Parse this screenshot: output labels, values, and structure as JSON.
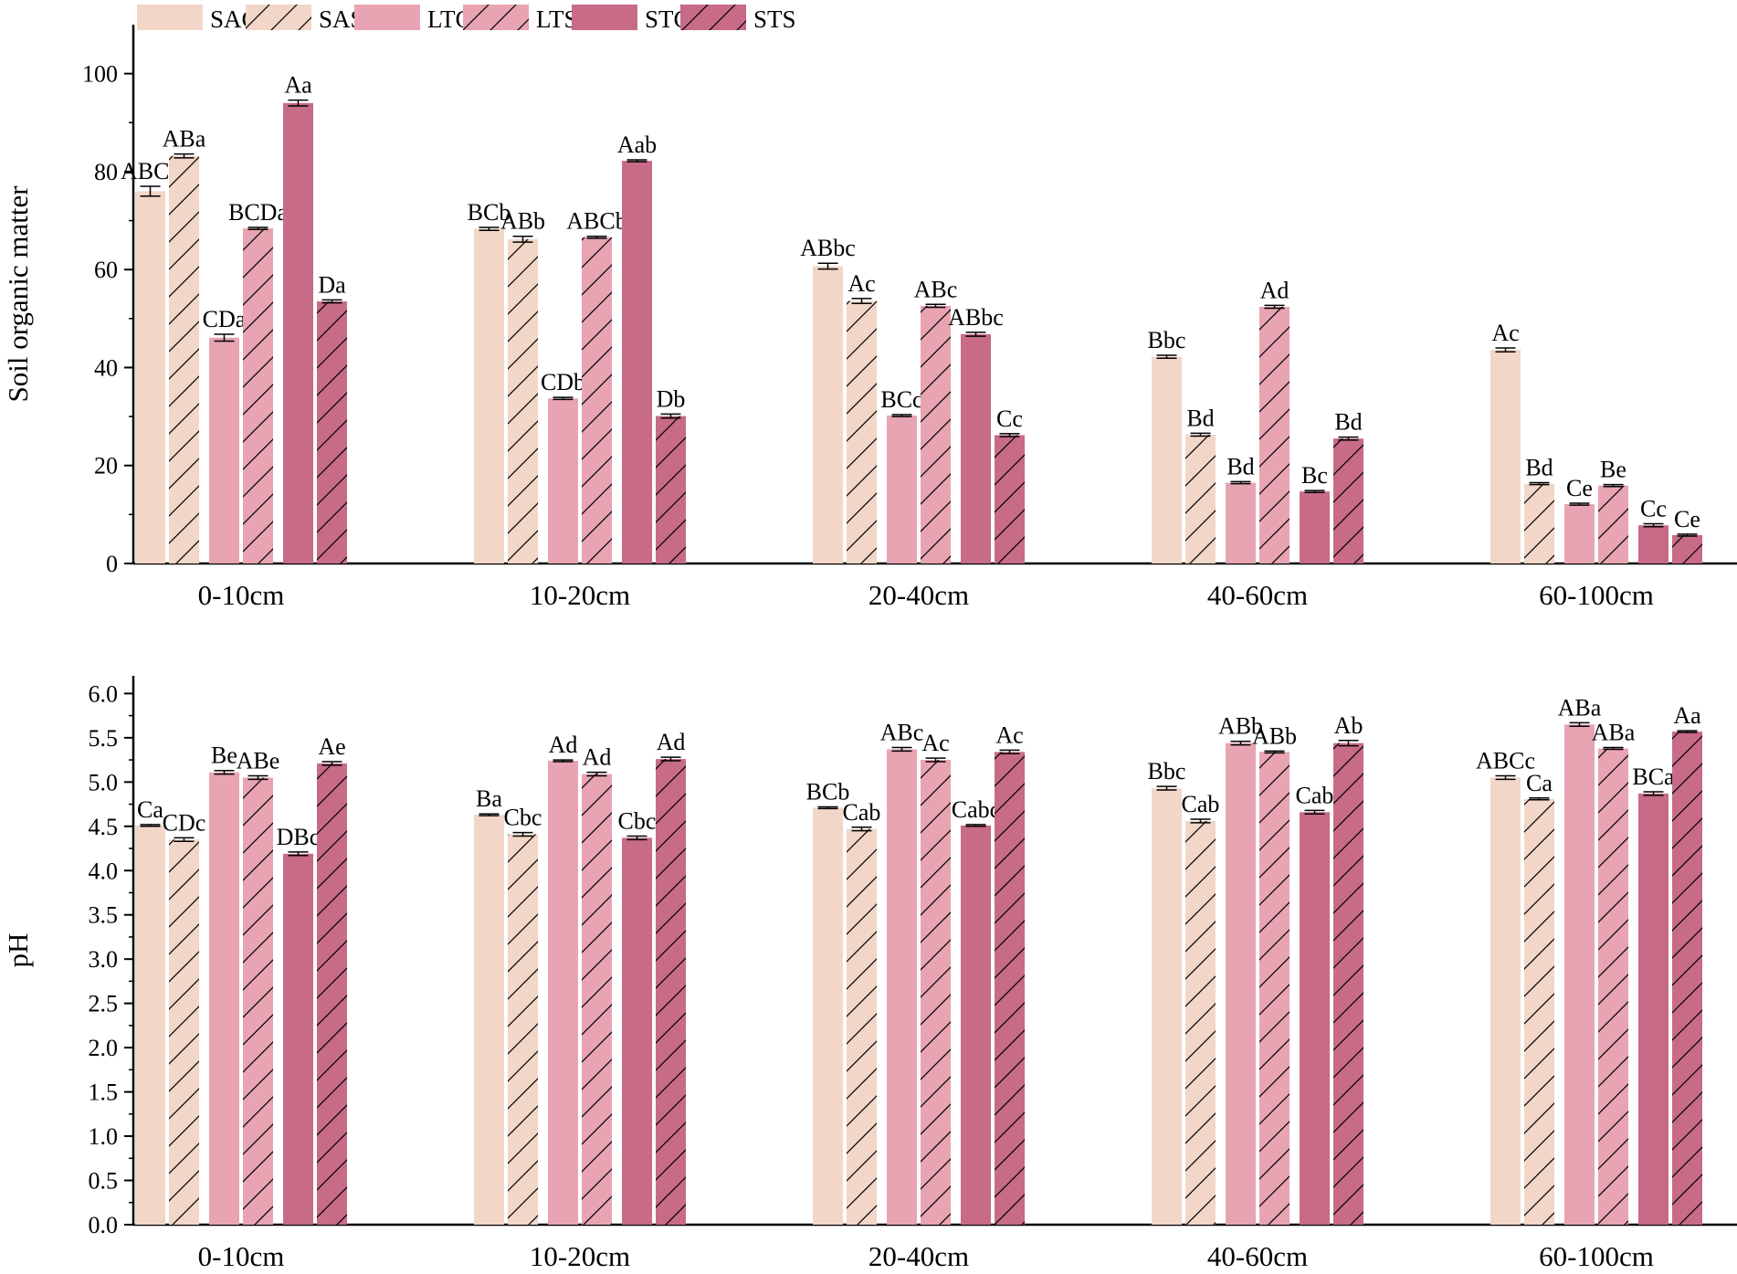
{
  "chart_data": [
    {
      "type": "bar",
      "title": "",
      "xlabel": "",
      "ylabel": "Soil organic matter",
      "ylim": [
        0,
        110
      ],
      "yticks": [
        0,
        20,
        40,
        60,
        80,
        100
      ],
      "yticklabels": [
        "0",
        "20",
        "40",
        "60",
        "80",
        "100"
      ],
      "categories": [
        "0-10cm",
        "10-20cm",
        "20-40cm",
        "40-60cm",
        "60-100cm"
      ],
      "series": [
        {
          "name": "SAG",
          "values": [
            76.0,
            68.3,
            60.7,
            42.2,
            43.6
          ],
          "errors": [
            1.0,
            0.3,
            0.6,
            0.3,
            0.4
          ],
          "labels": [
            "ABCa",
            "BCb",
            "ABbc",
            "Bbc",
            "Ac"
          ]
        },
        {
          "name": "SAS",
          "values": [
            83.2,
            66.2,
            53.6,
            26.3,
            16.3
          ],
          "errors": [
            0.4,
            0.6,
            0.5,
            0.3,
            0.2
          ],
          "labels": [
            "ABa",
            "ABb",
            "Ac",
            "Bd",
            "Bd"
          ]
        },
        {
          "name": "LTG",
          "values": [
            46.1,
            33.7,
            30.2,
            16.5,
            12.1
          ],
          "errors": [
            0.7,
            0.2,
            0.2,
            0.2,
            0.2
          ],
          "labels": [
            "CDa",
            "CDb",
            "BCc",
            "Bd",
            "Ce"
          ]
        },
        {
          "name": "LTS",
          "values": [
            68.4,
            66.6,
            52.6,
            52.4,
            15.9
          ],
          "errors": [
            0.2,
            0.2,
            0.3,
            0.3,
            0.2
          ],
          "labels": [
            "BCDa",
            "ABCb",
            "ABc",
            "Ad",
            "Be"
          ]
        },
        {
          "name": "STG",
          "values": [
            94.0,
            82.2,
            46.8,
            14.7,
            7.8
          ],
          "errors": [
            0.6,
            0.2,
            0.4,
            0.2,
            0.3
          ],
          "labels": [
            "Aa",
            "Aab",
            "ABbc",
            "Bc",
            "Cc"
          ]
        },
        {
          "name": "STS",
          "values": [
            53.5,
            30.1,
            26.2,
            25.5,
            5.8
          ],
          "errors": [
            0.3,
            0.4,
            0.3,
            0.3,
            0.2
          ],
          "labels": [
            "Da",
            "Db",
            "Cc",
            "Bd",
            "Ce"
          ]
        }
      ]
    },
    {
      "type": "bar",
      "title": "",
      "xlabel": "",
      "ylabel": "pH",
      "ylim": [
        0,
        6.2
      ],
      "yticks": [
        0,
        0.5,
        1,
        1.5,
        2,
        2.5,
        3,
        3.5,
        4,
        4.5,
        5,
        5.5,
        6
      ],
      "yticklabels": [
        "0.0",
        "0.5",
        "1.0",
        "1.5",
        "2.0",
        "2.5",
        "3.0",
        "3.5",
        "4.0",
        "4.5",
        "5.0",
        "5.5",
        "6.0"
      ],
      "categories": [
        "0-10cm",
        "10-20cm",
        "20-40cm",
        "40-60cm",
        "60-100cm"
      ],
      "series": [
        {
          "name": "SAG",
          "values": [
            4.51,
            4.63,
            4.71,
            4.93,
            5.05
          ],
          "errors": [
            0.01,
            0.01,
            0.01,
            0.02,
            0.02
          ],
          "labels": [
            "Ca",
            "Ba",
            "BCb",
            "Bbc",
            "ABCc"
          ]
        },
        {
          "name": "SAS",
          "values": [
            4.35,
            4.41,
            4.47,
            4.56,
            4.81
          ],
          "errors": [
            0.02,
            0.02,
            0.02,
            0.02,
            0.01
          ],
          "labels": [
            "CDc",
            "Cbc",
            "Cab",
            "Cab",
            "Ca"
          ]
        },
        {
          "name": "LTG",
          "values": [
            5.11,
            5.24,
            5.37,
            5.44,
            5.65
          ],
          "errors": [
            0.02,
            0.01,
            0.02,
            0.02,
            0.02
          ],
          "labels": [
            "Be",
            "Ad",
            "ABc",
            "ABb",
            "ABa"
          ]
        },
        {
          "name": "LTS",
          "values": [
            5.05,
            5.09,
            5.25,
            5.34,
            5.38
          ],
          "errors": [
            0.02,
            0.02,
            0.02,
            0.01,
            0.01
          ],
          "labels": [
            "ABe",
            "Ad",
            "Ac",
            "ABb",
            "ABa"
          ]
        },
        {
          "name": "STG",
          "values": [
            4.19,
            4.37,
            4.51,
            4.66,
            4.87
          ],
          "errors": [
            0.02,
            0.02,
            0.01,
            0.02,
            0.02
          ],
          "labels": [
            "DBc",
            "Cbc",
            "Cabc",
            "Cab",
            "BCa"
          ]
        },
        {
          "name": "STS",
          "values": [
            5.21,
            5.26,
            5.34,
            5.44,
            5.57
          ],
          "errors": [
            0.02,
            0.02,
            0.02,
            0.03,
            0.01
          ],
          "labels": [
            "Ae",
            "Ad",
            "Ac",
            "Ab",
            "Aa"
          ]
        }
      ]
    }
  ],
  "legend": {
    "entries": [
      {
        "name": "SAG",
        "hatch": false
      },
      {
        "name": "SAS",
        "hatch": true
      },
      {
        "name": "LTG",
        "hatch": false
      },
      {
        "name": "LTS",
        "hatch": true
      },
      {
        "name": "STG",
        "hatch": false
      },
      {
        "name": "STS",
        "hatch": true
      }
    ],
    "placement": "top"
  },
  "colors": {
    "SAG": "#f2d6c8",
    "SAS": "#f2d6c8",
    "LTG": "#e8a4b2",
    "LTS": "#e8a4b2",
    "STG": "#c86b86",
    "STS": "#c86b86",
    "axis": "#000000"
  }
}
